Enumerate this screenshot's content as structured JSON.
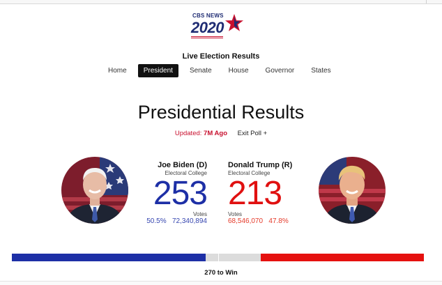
{
  "logo": {
    "brand": "CBS NEWS",
    "year": "2020"
  },
  "header": {
    "subtitle": "Live Election Results"
  },
  "nav": {
    "items": [
      {
        "label": "Home",
        "active": false
      },
      {
        "label": "President",
        "active": true
      },
      {
        "label": "Senate",
        "active": false
      },
      {
        "label": "House",
        "active": false
      },
      {
        "label": "Governor",
        "active": false
      },
      {
        "label": "States",
        "active": false
      }
    ]
  },
  "page": {
    "title": "Presidential Results",
    "updated_label": "Updated:",
    "updated_value": "7M Ago",
    "exit_poll": "Exit Poll +"
  },
  "candidates": {
    "biden": {
      "name": "Joe Biden (D)",
      "ec_label": "Electoral College",
      "electoral_votes": "253",
      "votes_label": "Votes",
      "percent": "50.5%",
      "popular_votes": "72,340,894",
      "color": "#1d2fa6"
    },
    "trump": {
      "name": "Donald Trump (R)",
      "ec_label": "Electoral College",
      "electoral_votes": "213",
      "votes_label": "Votes",
      "popular_votes": "68,546,070",
      "percent": "47.8%",
      "color": "#e01010"
    }
  },
  "progress": {
    "total_electoral_votes": 538,
    "dem_electoral_votes": 253,
    "rep_electoral_votes": 213,
    "win_label": "270 to Win"
  }
}
